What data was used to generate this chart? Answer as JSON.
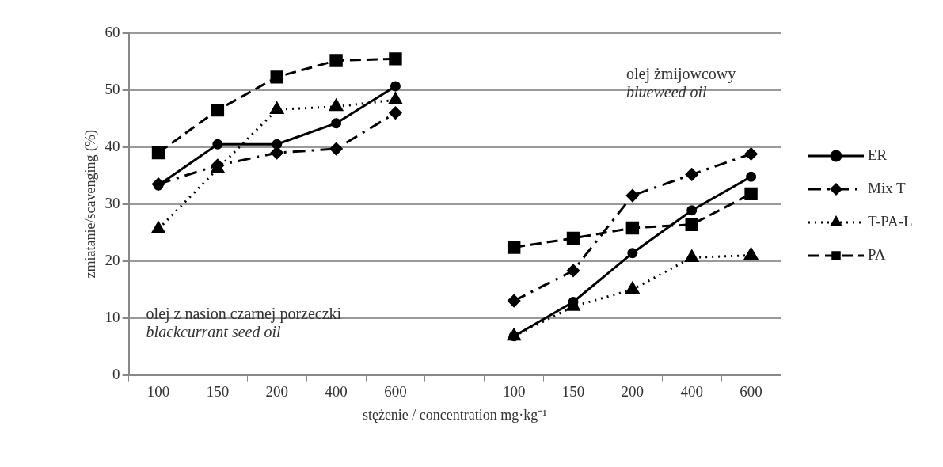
{
  "chart_data": {
    "type": "line",
    "xlabel": "stężenie / concentration mg·kg⁻¹",
    "ylabel": "zmiatanie/scavenging (%)",
    "categories": [
      "100",
      "150",
      "200",
      "400",
      "600",
      null,
      "100",
      "150",
      "200",
      "400",
      "600"
    ],
    "series": [
      {
        "name": "ER",
        "color": "#000000",
        "marker": "circle",
        "line_style": "solid",
        "values": [
          33.3,
          40.5,
          40.5,
          44.2,
          50.7,
          null,
          6.8,
          12.8,
          21.4,
          28.9,
          34.8
        ]
      },
      {
        "name": "Mix T",
        "color": "#000000",
        "marker": "diamond",
        "line_style": "dashdot",
        "values": [
          33.5,
          36.8,
          39,
          39.7,
          46,
          null,
          13,
          18.3,
          31.5,
          35.2,
          38.8
        ]
      },
      {
        "name": "T-PA-L",
        "color": "#000000",
        "marker": "triangle",
        "line_style": "dotted",
        "values": [
          25.6,
          36.2,
          46.6,
          47.1,
          48.3,
          null,
          6.8,
          12,
          15,
          20.6,
          21
        ]
      },
      {
        "name": "PA",
        "color": "#000000",
        "marker": "square",
        "line_style": "dashed",
        "values": [
          39,
          46.5,
          52.3,
          55.2,
          55.5,
          null,
          22.4,
          24,
          25.8,
          26.4,
          31.8
        ]
      }
    ],
    "annotations": [
      "olej z nasion czarnej porzeczki",
      "blackcurrant seed oil",
      "olej żmijowcowy",
      "blueweed oil"
    ],
    "ylim": [
      0,
      60
    ],
    "yticks": [
      0,
      10,
      20,
      30,
      40,
      50,
      60
    ],
    "grid": "y",
    "legend": "right"
  }
}
